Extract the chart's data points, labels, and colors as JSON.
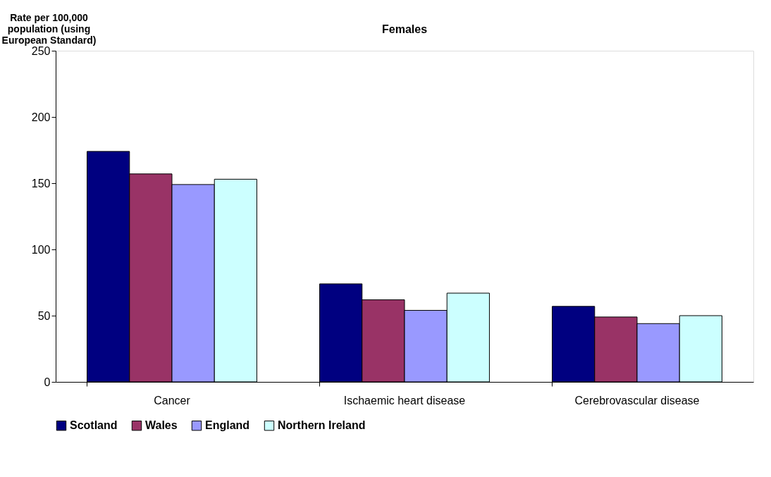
{
  "chart_data": {
    "type": "bar",
    "title": "Females",
    "ylabel": "Rate per 100,000 population (using European Standard)",
    "categories": [
      "Cancer",
      "Ischaemic heart disease",
      "Cerebrovascular disease"
    ],
    "series": [
      {
        "name": "Scotland",
        "color": "#000080",
        "values": [
          174,
          74,
          57
        ]
      },
      {
        "name": "Wales",
        "color": "#993366",
        "values": [
          157,
          62,
          49
        ]
      },
      {
        "name": "England",
        "color": "#9999ff",
        "values": [
          149,
          54,
          44
        ]
      },
      {
        "name": "Northern Ireland",
        "color": "#ccffff",
        "values": [
          153,
          67,
          50
        ]
      }
    ],
    "ylim": [
      0,
      250
    ],
    "yticks": [
      0,
      50,
      100,
      150,
      200,
      250
    ],
    "grid": false,
    "legend": "bottom"
  }
}
